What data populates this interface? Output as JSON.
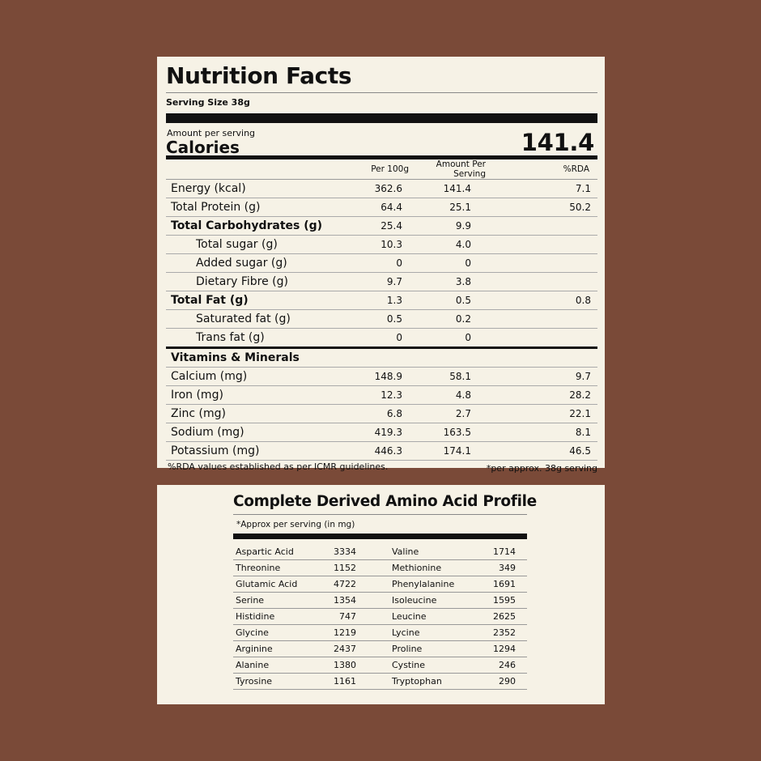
{
  "nutrition": {
    "title": "Nutrition Facts",
    "serving_size": "Serving Size 38g",
    "amount_per_serving": "Amount per serving",
    "calories_label": "Calories",
    "calories_value": "141.4",
    "columns": [
      "Per 100g",
      "Amount Per Serving",
      "%RDA"
    ],
    "rows": [
      {
        "label": "Energy (kcal)",
        "per100": "362.6",
        "serving": "141.4",
        "rda": "7.1",
        "bold": false,
        "sub": false
      },
      {
        "label": "Total Protein (g)",
        "per100": "64.4",
        "serving": "25.1",
        "rda": "50.2",
        "bold": false,
        "sub": false
      },
      {
        "label": "Total Carbohydrates (g)",
        "per100": "25.4",
        "serving": "9.9",
        "rda": "",
        "bold": true,
        "sub": false
      },
      {
        "label": "Total sugar (g)",
        "per100": "10.3",
        "serving": "4.0",
        "rda": "",
        "bold": false,
        "sub": true
      },
      {
        "label": "Added sugar (g)",
        "per100": "0",
        "serving": "0",
        "rda": "",
        "bold": false,
        "sub": true
      },
      {
        "label": "Dietary Fibre (g)",
        "per100": "9.7",
        "serving": "3.8",
        "rda": "",
        "bold": false,
        "sub": true
      },
      {
        "label": "Total Fat (g)",
        "per100": "1.3",
        "serving": "0.5",
        "rda": "0.8",
        "bold": true,
        "sub": false
      },
      {
        "label": "Saturated fat (g)",
        "per100": "0.5",
        "serving": "0.2",
        "rda": "",
        "bold": false,
        "sub": true
      },
      {
        "label": "Trans fat (g)",
        "per100": "0",
        "serving": "0",
        "rda": "",
        "bold": false,
        "sub": true
      }
    ],
    "vitamins_heading": "Vitamins & Minerals",
    "minerals": [
      {
        "label": "Calcium (mg)",
        "per100": "148.9",
        "serving": "58.1",
        "rda": "9.7"
      },
      {
        "label": "Iron (mg)",
        "per100": "12.3",
        "serving": "4.8",
        "rda": "28.2"
      },
      {
        "label": "Zinc (mg)",
        "per100": "6.8",
        "serving": "2.7",
        "rda": "22.1"
      },
      {
        "label": "Sodium (mg)",
        "per100": "419.3",
        "serving": "163.5",
        "rda": "8.1"
      },
      {
        "label": "Potassium (mg)",
        "per100": "446.3",
        "serving": "174.1",
        "rda": "46.5"
      }
    ],
    "footnote_left": "%RDA values established as per ICMR guidelines.",
    "footnote_right": "*per approx. 38g serving"
  },
  "amino": {
    "title": "Complete Derived Amino Acid Profile",
    "note": "*Approx per serving (in mg)",
    "rows": [
      {
        "a": "Aspartic Acid",
        "av": "3334",
        "b": "Valine",
        "bv": "1714"
      },
      {
        "a": "Threonine",
        "av": "1152",
        "b": "Methionine",
        "bv": "349"
      },
      {
        "a": "Glutamic Acid",
        "av": "4722",
        "b": "Phenylalanine",
        "bv": "1691"
      },
      {
        "a": "Serine",
        "av": "1354",
        "b": "Isoleucine",
        "bv": "1595"
      },
      {
        "a": "Histidine",
        "av": "747",
        "b": "Leucine",
        "bv": "2625"
      },
      {
        "a": "Glycine",
        "av": "1219",
        "b": "Lycine",
        "bv": "2352"
      },
      {
        "a": "Arginine",
        "av": "2437",
        "b": "Proline",
        "bv": "1294"
      },
      {
        "a": "Alanine",
        "av": "1380",
        "b": "Cystine",
        "bv": "246"
      },
      {
        "a": "Tyrosine",
        "av": "1161",
        "b": "Tryptophan",
        "bv": "290"
      }
    ]
  },
  "colors": {
    "background": "#7a4a38",
    "panel": "#f6f2e6",
    "ink": "#111111"
  }
}
